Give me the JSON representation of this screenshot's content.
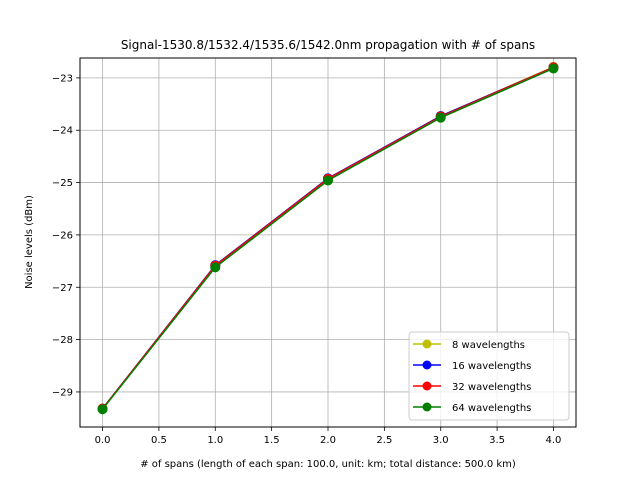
{
  "chart_data": {
    "type": "line",
    "title": "Signal-1530.8/1532.4/1535.6/1542.0nm propagation with # of spans",
    "xlabel": "# of spans (length of each span: 100.0, unit: km; total distance: 500.0 km)",
    "ylabel": "Noise levels (dBm)",
    "x": [
      0,
      1,
      2,
      3,
      4
    ],
    "xlim": [
      -0.2,
      4.2
    ],
    "ylim": [
      -29.67,
      -22.62
    ],
    "xticks": [
      0,
      0.5,
      1,
      1.5,
      2,
      2.5,
      3,
      3.5,
      4
    ],
    "xtick_labels": [
      "0.0",
      "0.5",
      "1.0",
      "1.5",
      "2.0",
      "2.5",
      "3.0",
      "3.5",
      "4.0"
    ],
    "yticks": [
      -29,
      -28,
      -27,
      -26,
      -25,
      -24,
      -23
    ],
    "ytick_labels": [
      "−29",
      "−28",
      "−27",
      "−26",
      "−25",
      "−24",
      "−23"
    ],
    "grid": true,
    "legend_position": "lower-right",
    "series": [
      {
        "name": "8 wavelengths",
        "color": "#bfbf00",
        "values": [
          -29.32,
          -26.58,
          -24.92,
          -23.73,
          -22.79
        ]
      },
      {
        "name": "16 wavelengths",
        "color": "#0000ff",
        "values": [
          -29.32,
          -26.58,
          -24.92,
          -23.73,
          -22.8
        ]
      },
      {
        "name": "32 wavelengths",
        "color": "#ff0000",
        "values": [
          -29.32,
          -26.59,
          -24.93,
          -23.74,
          -22.8
        ]
      },
      {
        "name": "64 wavelengths",
        "color": "#008000",
        "values": [
          -29.33,
          -26.62,
          -24.96,
          -23.76,
          -22.82
        ]
      }
    ]
  }
}
